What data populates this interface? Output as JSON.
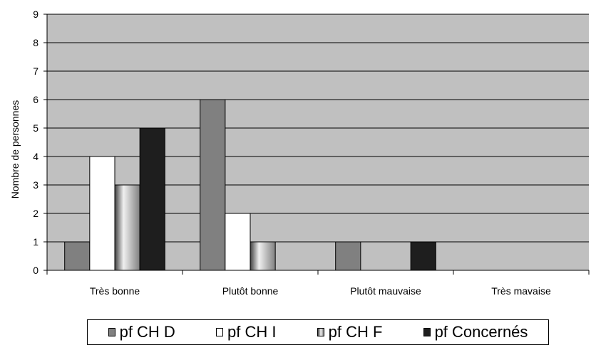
{
  "chart_data": {
    "type": "bar",
    "title": "",
    "xlabel": "",
    "ylabel": "Nombre de personnes",
    "ylim": [
      0,
      9
    ],
    "yticks": [
      "0",
      "1",
      "2",
      "3",
      "4",
      "5",
      "6",
      "7",
      "8",
      "9"
    ],
    "grid": true,
    "legend_position": "bottom",
    "categories": [
      "Très bonne",
      "Plutôt bonne",
      "Plutôt mauvaise",
      "Très mavaise"
    ],
    "series": [
      {
        "name": "pf CH D",
        "values": [
          1,
          6,
          1,
          0
        ],
        "color": "#808080"
      },
      {
        "name": "pf CH I",
        "values": [
          4,
          2,
          0,
          0
        ],
        "color": "#ffffff"
      },
      {
        "name": "pf CH F",
        "values": [
          3,
          1,
          0,
          0
        ],
        "color": "#b0b0b0"
      },
      {
        "name": "pf Concernés",
        "values": [
          5,
          0,
          1,
          0
        ],
        "color": "#1e1e1e"
      }
    ],
    "plot_background": "#c0c0c0"
  }
}
